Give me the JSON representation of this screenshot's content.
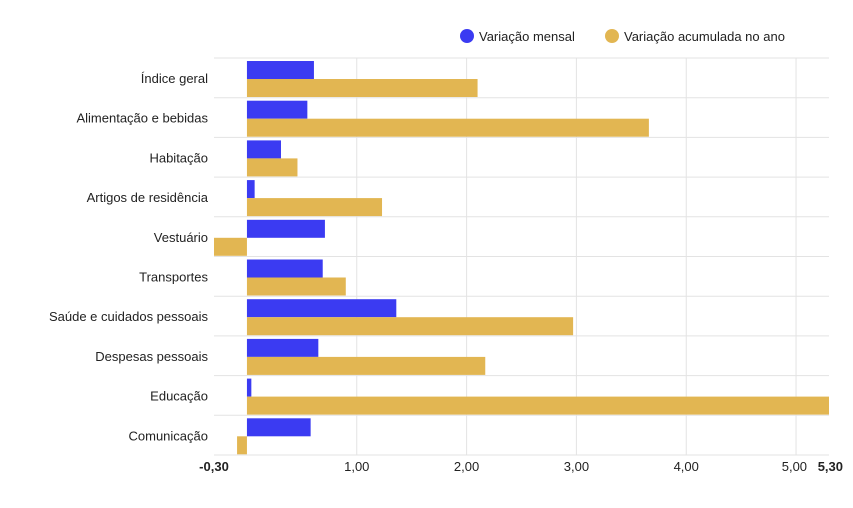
{
  "colors": {
    "monthly": "#3b3bf2",
    "accumulated": "#e2b652",
    "grid": "#e3e3e3",
    "text": "#222222"
  },
  "chart_data": {
    "type": "bar",
    "orientation": "horizontal",
    "title": "",
    "xlabel": "",
    "ylabel": "",
    "legend_position": "top-right",
    "grid": true,
    "xlim": [
      -0.3,
      5.3
    ],
    "x_ticks": [
      -0.3,
      1.0,
      2.0,
      3.0,
      4.0,
      5.0,
      5.3
    ],
    "x_tick_labels": [
      "-0,30",
      "1,00",
      "2,00",
      "3,00",
      "4,00",
      "5,00",
      "5,30"
    ],
    "categories": [
      "Índice geral",
      "Alimentação e bebidas",
      "Habitação",
      "Artigos de residência",
      "Vestuário",
      "Transportes",
      "Saúde e cuidados pessoais",
      "Despesas pessoais",
      "Educação",
      "Comunicação"
    ],
    "series": [
      {
        "name": "Variação mensal",
        "color": "#3b3bf2",
        "values": [
          0.61,
          0.55,
          0.31,
          0.07,
          0.71,
          0.69,
          1.36,
          0.65,
          0.04,
          0.58
        ]
      },
      {
        "name": "Variação acumulada no ano",
        "color": "#e2b652",
        "values": [
          2.1,
          3.66,
          0.46,
          1.23,
          -0.3,
          0.9,
          2.97,
          2.17,
          5.3,
          -0.09
        ]
      }
    ]
  }
}
